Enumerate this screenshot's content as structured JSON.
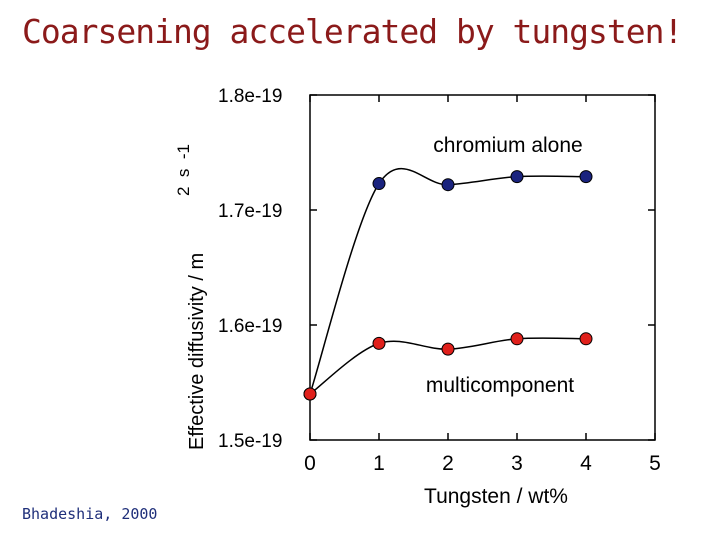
{
  "title": "Coarsening accelerated by tungsten!",
  "credit": "Bhadeshia, 2000",
  "chart_data": {
    "type": "line",
    "xlabel": "Tungsten / wt%",
    "ylabel": "Effective diffusivity / m",
    "ylabel_exponent": "2  s  -1",
    "xlim": [
      0,
      5
    ],
    "ylim": [
      1.5e-19,
      1.8e-19
    ],
    "x_ticks": [
      "0",
      "1",
      "2",
      "3",
      "4",
      "5"
    ],
    "y_ticks": [
      "1.5e-19",
      "1.6e-19",
      "1.7e-19",
      "1.8e-19"
    ],
    "grid": false,
    "series": [
      {
        "name": "chromium alone",
        "color": "#1a237e",
        "x": [
          0,
          1,
          2,
          3,
          4
        ],
        "y": [
          1.54e-19,
          1.723e-19,
          1.722e-19,
          1.729e-19,
          1.729e-19
        ]
      },
      {
        "name": "multicomponent",
        "color": "#e0201b",
        "x": [
          0,
          1,
          2,
          3,
          4
        ],
        "y": [
          1.54e-19,
          1.584e-19,
          1.579e-19,
          1.588e-19,
          1.588e-19
        ]
      }
    ]
  }
}
